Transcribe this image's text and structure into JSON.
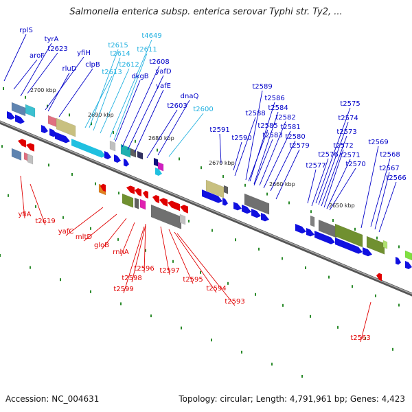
{
  "header": {
    "title": "Salmonella enterica subsp. enterica serovar Typhi str. Ty2, ..."
  },
  "footer": {
    "accession": "Accession: NC_004631",
    "topology": "Topology: circular; Length: 4,791,961 bp; Genes: 4,423"
  },
  "colors": {
    "forward_label": "#0000c8",
    "rna_label": "#20b0e0",
    "reverse_label": "#e00000",
    "backbone": "#777777",
    "tick": "#2a8a2a"
  },
  "scale_labels": [
    "2700 kbp",
    "2690 kbp",
    "2680 kbp",
    "2670 kbp",
    "2660 kbp",
    "2650 kbp"
  ],
  "forward_labels": [
    "rplS",
    "tyrA",
    "aroF",
    "t2623",
    "yfiH",
    "rluD",
    "clpB",
    "t2615",
    "t4649",
    "t2614",
    "t2611",
    "t2612",
    "t2613",
    "t2608",
    "dkgB",
    "yafD",
    "yafE",
    "dnaQ",
    "t2603",
    "t2600",
    "t2589",
    "t2586",
    "t2588",
    "t2584",
    "t2582",
    "t2585",
    "t2581",
    "t2583",
    "t2580",
    "t2591",
    "t2590",
    "t2579",
    "t2577",
    "t2576",
    "t2575",
    "t2574",
    "t2573",
    "t2572",
    "t2571",
    "t2570",
    "t2569",
    "t2568",
    "t2567",
    "t2566"
  ],
  "reverse_labels": [
    "yfiA",
    "t2619",
    "yafC",
    "mltD",
    "gloB",
    "rnhA",
    "t2596",
    "t2598",
    "t2599",
    "t2597",
    "t2595",
    "t2594",
    "t2593",
    "t2563"
  ]
}
